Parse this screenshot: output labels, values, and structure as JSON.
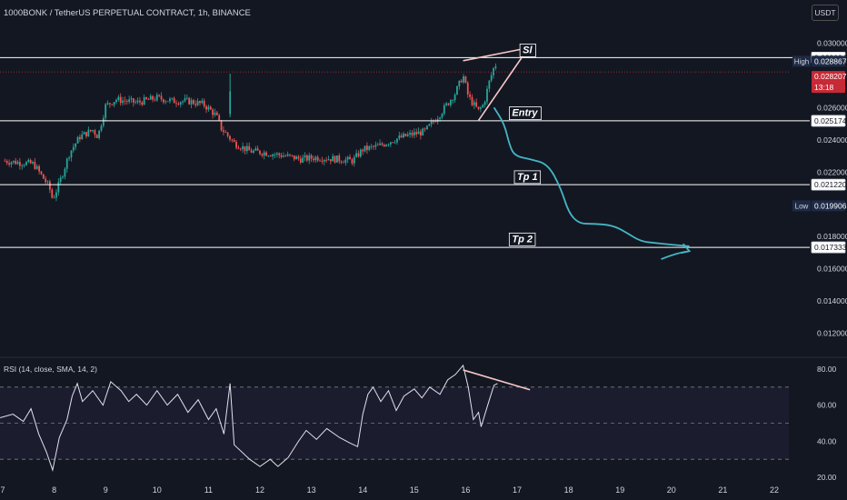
{
  "header": {
    "symbol_line": "1000BONK / TetherUS PERPETUAL CONTRACT, 1h, BINANCE",
    "currency": "USDT"
  },
  "rsi": {
    "label": "RSI (14, close, SMA, 14, 2)",
    "levels": {
      "upper": 70,
      "middle": 50,
      "lower": 30
    },
    "ticks": [
      "80.00",
      "60.00",
      "40.00",
      "20.00"
    ],
    "ylim": [
      17.5,
      83
    ]
  },
  "colors": {
    "up": "#26a69a",
    "down": "#ef5350",
    "background": "#131722",
    "level_line": "#ffffff",
    "projection": "#45b5c4",
    "wedge": "#f6c6c6",
    "high_badge": "#1e2a45",
    "price_badge": "#c62a36"
  },
  "chart_data": {
    "type": "candlestick",
    "title": "1000BONK / TetherUS PERPETUAL CONTRACT, 1h, BINANCE",
    "ylim": [
      0.0108,
      0.0312
    ],
    "y_ticks": [
      "0.030000",
      "0.026000",
      "0.024000",
      "0.022000",
      "0.018000",
      "0.016000",
      "0.014000",
      "0.012000"
    ],
    "x_ticks": [
      "7",
      "8",
      "9",
      "10",
      "11",
      "12",
      "13",
      "14",
      "15",
      "16",
      "17",
      "18",
      "19",
      "20",
      "21",
      "22"
    ],
    "x_label_day": 7,
    "close_path": [
      [
        7.0,
        0.0227
      ],
      [
        7.3,
        0.0226
      ],
      [
        7.6,
        0.0225
      ],
      [
        7.9,
        0.0211
      ],
      [
        7.97,
        0.0203
      ],
      [
        8.1,
        0.0213
      ],
      [
        8.3,
        0.0232
      ],
      [
        8.5,
        0.0242
      ],
      [
        8.75,
        0.0246
      ],
      [
        8.85,
        0.0242
      ],
      [
        9.0,
        0.0261
      ],
      [
        9.2,
        0.0265
      ],
      [
        9.6,
        0.0263
      ],
      [
        10.0,
        0.0266
      ],
      [
        10.3,
        0.0264
      ],
      [
        10.6,
        0.0264
      ],
      [
        10.9,
        0.0262
      ],
      [
        11.05,
        0.0258
      ],
      [
        11.15,
        0.0255
      ],
      [
        11.25,
        0.0247
      ],
      [
        11.5,
        0.0238
      ],
      [
        11.8,
        0.0233
      ],
      [
        12.1,
        0.0232
      ],
      [
        12.5,
        0.023
      ],
      [
        12.8,
        0.0228
      ],
      [
        13.1,
        0.0229
      ],
      [
        13.5,
        0.0228
      ],
      [
        13.8,
        0.0227
      ],
      [
        14.0,
        0.0234
      ],
      [
        14.3,
        0.0236
      ],
      [
        14.6,
        0.024
      ],
      [
        14.9,
        0.0243
      ],
      [
        15.2,
        0.0245
      ],
      [
        15.5,
        0.0256
      ],
      [
        15.8,
        0.0269
      ],
      [
        15.95,
        0.028
      ],
      [
        16.05,
        0.0267
      ],
      [
        16.15,
        0.0262
      ],
      [
        16.25,
        0.0258
      ],
      [
        16.35,
        0.0262
      ],
      [
        16.45,
        0.0275
      ],
      [
        16.55,
        0.0285
      ],
      [
        16.62,
        0.02882
      ]
    ],
    "candles": [
      {
        "day": 11.42,
        "open": 0.0256,
        "high": 0.0281,
        "low": 0.0254,
        "close": 0.027
      }
    ],
    "levels": [
      {
        "name": "High",
        "price": 0.029094,
        "label": "0.029094"
      },
      {
        "name": "Entry",
        "price": 0.025174,
        "label": "0.025174"
      },
      {
        "name": "Tp 1",
        "price": 0.02122,
        "label": "0.021220"
      },
      {
        "name": "Tp 2",
        "price": 0.017333,
        "label": "0.017333"
      }
    ],
    "annotations": [
      {
        "text": "Sl",
        "day": 17.2,
        "price": 0.0296
      },
      {
        "text": "Entry",
        "day": 17.15,
        "price": 0.0257
      },
      {
        "text": "Tp 1",
        "day": 17.2,
        "price": 0.02174
      },
      {
        "text": "Tp 2",
        "day": 17.1,
        "price": 0.01788
      }
    ],
    "price_badges": [
      {
        "tag": "High",
        "value": "0.028867",
        "price": 0.028867
      },
      {
        "tag": "",
        "value": "0.028207",
        "sub": "13:18",
        "price": 0.028207
      },
      {
        "tag": "Low",
        "value": "0.019906",
        "price": 0.019906
      }
    ],
    "current_price": 0.028207,
    "projection_path": [
      [
        16.55,
        0.026
      ],
      [
        16.75,
        0.025
      ],
      [
        16.85,
        0.0237
      ],
      [
        16.95,
        0.023
      ],
      [
        17.25,
        0.0228
      ],
      [
        17.6,
        0.0225
      ],
      [
        17.85,
        0.021
      ],
      [
        18.0,
        0.0195
      ],
      [
        18.2,
        0.0188
      ],
      [
        18.5,
        0.0188
      ],
      [
        18.85,
        0.0187
      ],
      [
        19.1,
        0.0183
      ],
      [
        19.4,
        0.0177
      ],
      [
        19.7,
        0.0176
      ],
      [
        20.0,
        0.0175
      ],
      [
        20.35,
        0.0174
      ]
    ],
    "projection_arrow": [
      [
        19.8,
        0.0166
      ],
      [
        20.1,
        0.017
      ],
      [
        20.35,
        0.0171
      ]
    ],
    "wedge": [
      [
        15.95,
        0.0289
      ],
      [
        17.22,
        0.0297
      ],
      [
        16.25,
        0.0252
      ]
    ],
    "rsi_divergence": [
      [
        15.95,
        79.5
      ],
      [
        17.25,
        68.5
      ]
    ],
    "rsi_path": [
      [
        6.95,
        53
      ],
      [
        7.2,
        55
      ],
      [
        7.4,
        51
      ],
      [
        7.55,
        58
      ],
      [
        7.7,
        44
      ],
      [
        7.85,
        34
      ],
      [
        7.97,
        24
      ],
      [
        8.1,
        42
      ],
      [
        8.25,
        52
      ],
      [
        8.35,
        65
      ],
      [
        8.45,
        72
      ],
      [
        8.55,
        62
      ],
      [
        8.75,
        68
      ],
      [
        8.95,
        60
      ],
      [
        9.1,
        73
      ],
      [
        9.3,
        68
      ],
      [
        9.45,
        62
      ],
      [
        9.6,
        66
      ],
      [
        9.8,
        60
      ],
      [
        10.0,
        68
      ],
      [
        10.2,
        60
      ],
      [
        10.4,
        66
      ],
      [
        10.6,
        56
      ],
      [
        10.8,
        63
      ],
      [
        11.0,
        52
      ],
      [
        11.15,
        58
      ],
      [
        11.3,
        44
      ],
      [
        11.42,
        72
      ],
      [
        11.5,
        38
      ],
      [
        11.8,
        30
      ],
      [
        12.0,
        26
      ],
      [
        12.2,
        30
      ],
      [
        12.35,
        26
      ],
      [
        12.55,
        31
      ],
      [
        12.75,
        40
      ],
      [
        12.9,
        46
      ],
      [
        13.1,
        41
      ],
      [
        13.3,
        47
      ],
      [
        13.55,
        42
      ],
      [
        13.75,
        39
      ],
      [
        13.9,
        37
      ],
      [
        14.0,
        55
      ],
      [
        14.1,
        66
      ],
      [
        14.2,
        70
      ],
      [
        14.35,
        62
      ],
      [
        14.5,
        68
      ],
      [
        14.65,
        57
      ],
      [
        14.8,
        65
      ],
      [
        15.0,
        69
      ],
      [
        15.15,
        64
      ],
      [
        15.3,
        70
      ],
      [
        15.5,
        66
      ],
      [
        15.65,
        74
      ],
      [
        15.8,
        77
      ],
      [
        15.95,
        82
      ],
      [
        16.05,
        70
      ],
      [
        16.15,
        52
      ],
      [
        16.25,
        56
      ],
      [
        16.3,
        48
      ],
      [
        16.45,
        62
      ],
      [
        16.55,
        71
      ],
      [
        16.62,
        72
      ]
    ]
  }
}
